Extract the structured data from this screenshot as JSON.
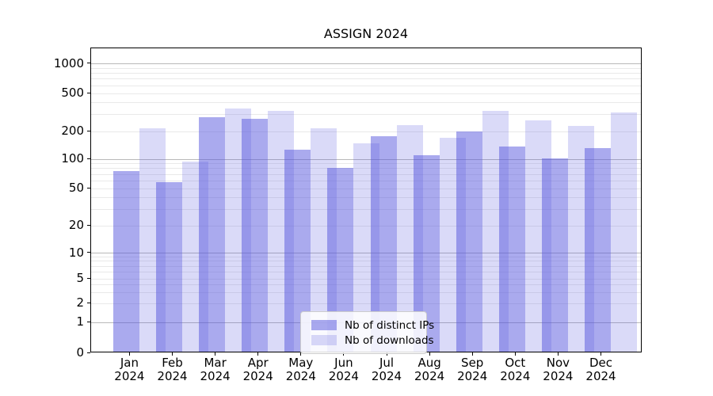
{
  "chart_data": {
    "type": "bar",
    "title": "ASSIGN 2024",
    "categories": [
      "Jan 2024",
      "Feb 2024",
      "Mar 2024",
      "Apr 2024",
      "May 2024",
      "Jun 2024",
      "Jul 2024",
      "Aug 2024",
      "Sep 2024",
      "Oct 2024",
      "Nov 2024",
      "Dec 2024"
    ],
    "months": [
      "Jan",
      "Feb",
      "Mar",
      "Apr",
      "May",
      "Jun",
      "Jul",
      "Aug",
      "Sep",
      "Oct",
      "Nov",
      "Dec"
    ],
    "year": "2024",
    "series": [
      {
        "key": "distinct-ips",
        "name": "Nb of distinct IPs",
        "color": "#5555dd",
        "opacity": 0.5,
        "values": [
          75,
          58,
          280,
          270,
          127,
          82,
          178,
          110,
          200,
          137,
          102,
          132
        ]
      },
      {
        "key": "downloads",
        "name": "Nb of downloads",
        "color": "#5555dd",
        "opacity": 0.22,
        "values": [
          215,
          94,
          345,
          330,
          215,
          148,
          235,
          172,
          328,
          262,
          230,
          315
        ]
      }
    ],
    "yscale": "symlog",
    "y_ticks": [
      0,
      1,
      2,
      5,
      10,
      20,
      50,
      100,
      200,
      500,
      1000
    ],
    "ylim": [
      0,
      1450
    ],
    "xlabel": "",
    "ylabel": "",
    "grid": true,
    "legend_position": "lower center"
  },
  "colors": {
    "axis": "#000000",
    "grid_major": "#b9b9b9",
    "grid_minor": "#e9e9e9",
    "legend_border": "#cccccc",
    "legend_background": "rgba(255,255,255,0.85)"
  }
}
